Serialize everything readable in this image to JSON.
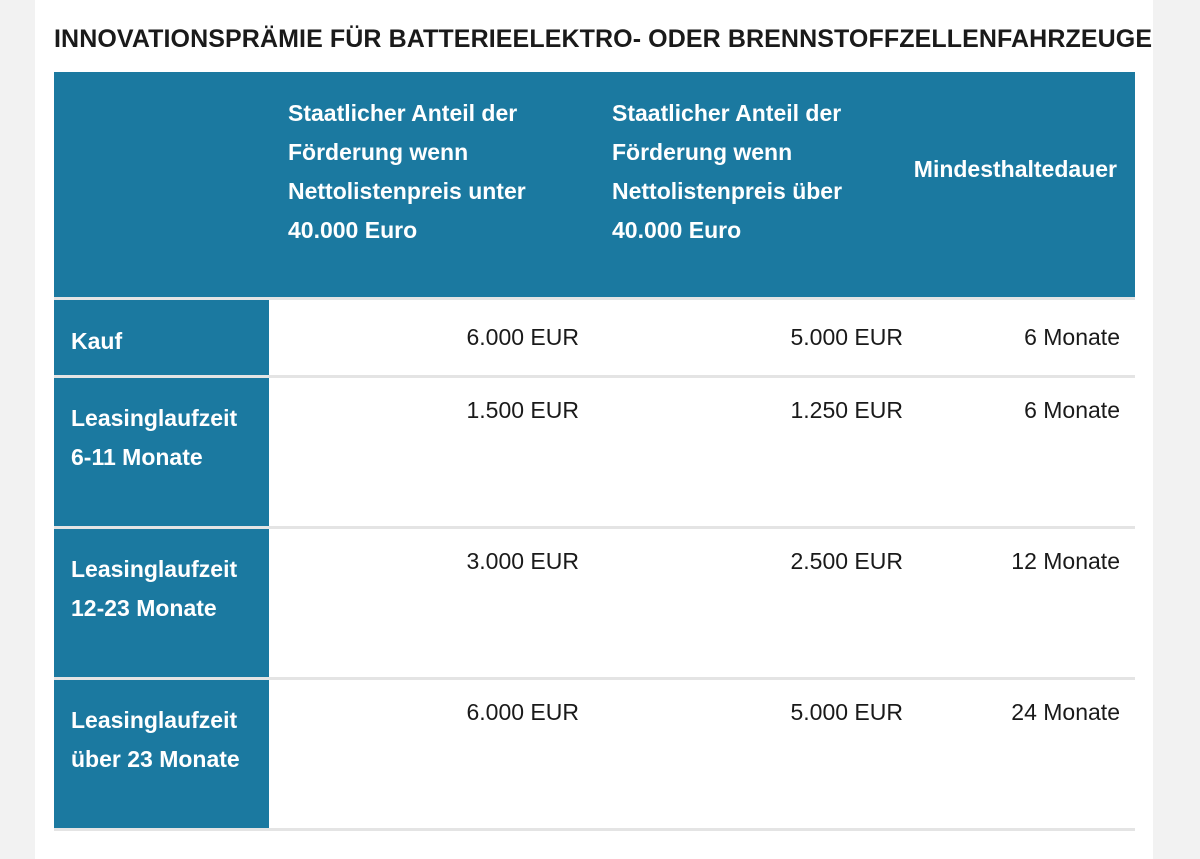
{
  "title": "INNOVATIONSPRÄMIE FÜR BATTERIEELEKTRO- ODER BRENNSTOFFZELLENFAHRZEUGE",
  "table": {
    "headers": [
      "",
      "Staatlicher Anteil der Förderung wenn Nettolistenpreis unter 40.000 Euro",
      "Staatlicher Anteil der Förderung wenn Nettolistenpreis über 40.000 Euro",
      "Mindesthaltedauer"
    ],
    "rows": [
      {
        "label": "Kauf",
        "under_40000": "6.000 EUR",
        "over_40000": "5.000 EUR",
        "duration": "6 Monate"
      },
      {
        "label": "Leasinglaufzeit 6-11 Monate",
        "under_40000": "1.500 EUR",
        "over_40000": "1.250 EUR",
        "duration": "6 Monate"
      },
      {
        "label": "Leasinglaufzeit 12-23 Monate",
        "under_40000": "3.000 EUR",
        "over_40000": "2.500 EUR",
        "duration": "12 Monate"
      },
      {
        "label": "Leasinglaufzeit über 23 Monate",
        "under_40000": "6.000 EUR",
        "over_40000": "5.000 EUR",
        "duration": "24 Monate"
      }
    ]
  },
  "colors": {
    "header_bg": "#1b79a0",
    "header_text": "#ffffff",
    "body_text": "#1a1a1a",
    "row_divider": "#e4e4e4",
    "page_bg": "#ffffff",
    "outer_bg": "#f2f2f2"
  }
}
